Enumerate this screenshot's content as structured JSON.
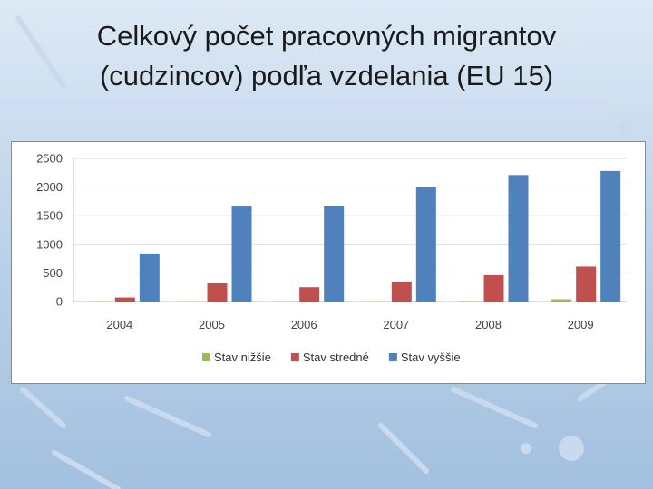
{
  "slide": {
    "title_line1": "Celkový počet pracovných migrantov",
    "title_line2": "(cudzincov) podľa vzdelania (EU 15)"
  },
  "chart_data": {
    "type": "bar",
    "title": "",
    "xlabel": "",
    "ylabel": "",
    "categories": [
      "2004",
      "2005",
      "2006",
      "2007",
      "2008",
      "2009"
    ],
    "series": [
      {
        "name": "Stav nižšie",
        "color": "#9bbb59",
        "values": [
          5,
          5,
          5,
          5,
          10,
          40
        ]
      },
      {
        "name": "Stav stredné",
        "color": "#c0504d",
        "values": [
          70,
          320,
          250,
          350,
          460,
          610
        ]
      },
      {
        "name": "Stav vyššie",
        "color": "#4f81bd",
        "values": [
          840,
          1660,
          1670,
          2000,
          2210,
          2280
        ]
      }
    ],
    "ylim": [
      0,
      2500
    ],
    "yticks": [
      "0",
      "500",
      "1000",
      "1500",
      "2000",
      "2500"
    ],
    "grid": true,
    "legend_position": "bottom"
  }
}
